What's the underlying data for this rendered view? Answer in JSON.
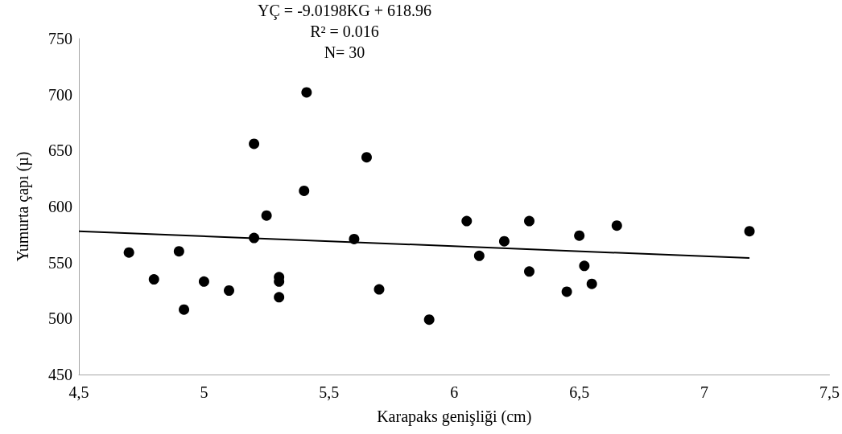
{
  "chart_data": {
    "type": "scatter",
    "xlabel": "Karapaks genişliği (cm)",
    "ylabel": "Yumurta çapı (µ)",
    "annotations": [
      "YÇ = -9.0198KG + 618.96",
      "R² = 0.016",
      "N= 30"
    ],
    "xlim": [
      4.5,
      7.5
    ],
    "xticks": [
      {
        "value": 4.5,
        "label": "4,5"
      },
      5,
      {
        "value": 5.5,
        "label": "5,5"
      },
      6,
      {
        "value": 6.5,
        "label": "6,5"
      },
      7,
      {
        "value": 7.5,
        "label": "7,5"
      }
    ],
    "ylim": [
      450,
      750
    ],
    "yticks": [
      450,
      500,
      550,
      600,
      650,
      700,
      750
    ],
    "grid": false,
    "marker": "circle",
    "series": [
      {
        "color": "#000000",
        "x": [
          4.7,
          4.8,
          4.9,
          4.92,
          5.0,
          5.1,
          5.2,
          5.2,
          5.25,
          5.3,
          5.3,
          5.3,
          5.4,
          5.41,
          5.6,
          5.65,
          5.7,
          5.9,
          6.05,
          6.1,
          6.2,
          6.3,
          6.3,
          6.45,
          6.5,
          6.52,
          6.55,
          6.65,
          7.18
        ],
        "values": [
          559,
          535,
          560,
          508,
          533,
          525,
          656,
          572,
          592,
          537,
          533,
          519,
          614,
          702,
          571,
          644,
          526,
          499,
          587,
          556,
          569,
          587,
          542,
          524,
          574,
          547,
          531,
          583,
          578
        ]
      },
      {
        "type": "line",
        "color": "#000000",
        "marker": "none",
        "line_style": "solid",
        "x": [
          4.5,
          7.18
        ],
        "values": [
          578,
          554
        ]
      }
    ]
  }
}
